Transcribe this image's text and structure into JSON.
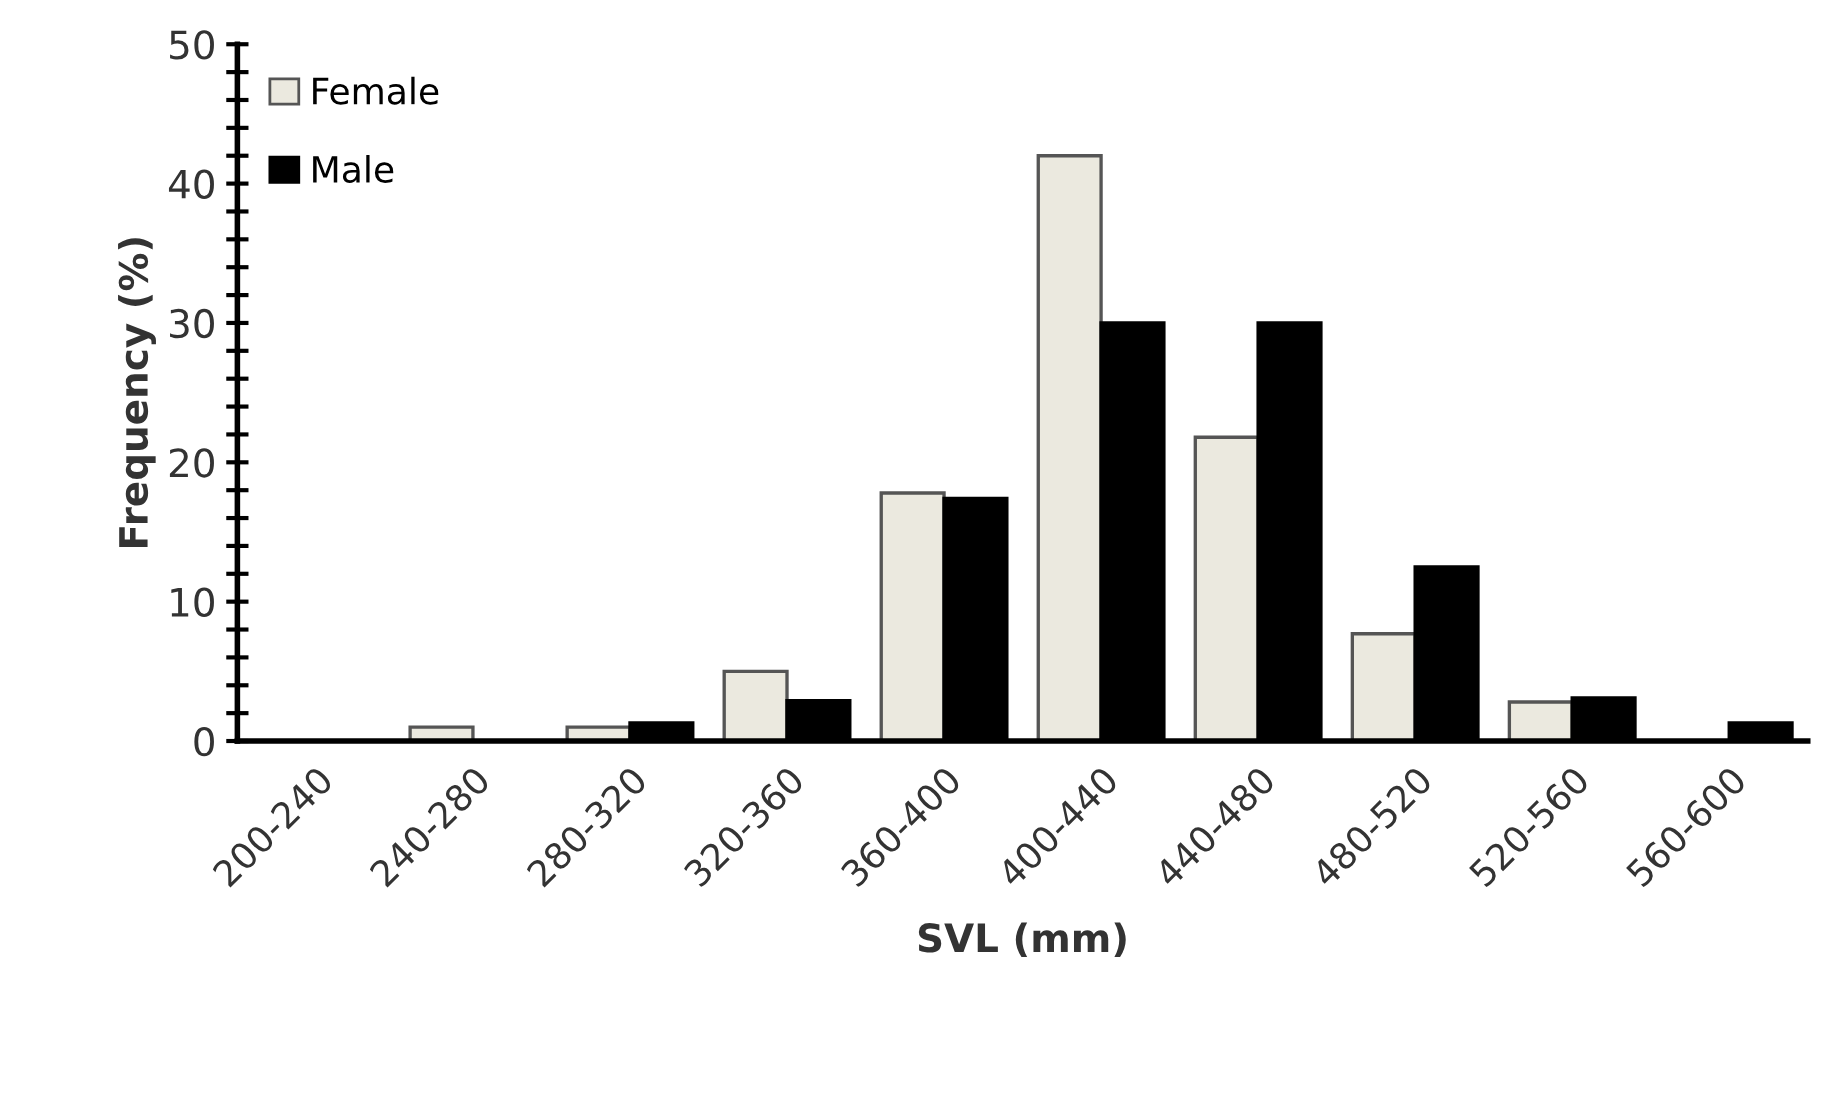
{
  "chart_data": {
    "type": "bar",
    "xlabel": "SVL (mm)",
    "ylabel": "Frequency (%)",
    "categories": [
      "200-240",
      "240-280",
      "280-320",
      "320-360",
      "360-400",
      "400-440",
      "440-480",
      "480-520",
      "520-560",
      "560-600"
    ],
    "series": [
      {
        "name": "Female",
        "color": "#ebe9df",
        "values": [
          0,
          1,
          1,
          5,
          17.8,
          42,
          21.8,
          7.7,
          2.8,
          0
        ]
      },
      {
        "name": "Male",
        "color": "#000000",
        "values": [
          0,
          0,
          1.3,
          2.9,
          17.4,
          30,
          30,
          12.5,
          3.1,
          1.3
        ]
      }
    ],
    "ylim": [
      0,
      50
    ],
    "yticks": [
      0,
      {
        "value": 2,
        "label": null
      },
      {
        "value": 4,
        "label": null
      },
      {
        "value": 6,
        "label": null
      },
      {
        "value": 8,
        "label": null
      },
      10,
      {
        "value": 12,
        "label": null
      },
      {
        "value": 14,
        "label": null
      },
      {
        "value": 16,
        "label": null
      },
      {
        "value": 18,
        "label": null
      },
      20,
      {
        "value": 22,
        "label": null
      },
      {
        "value": 24,
        "label": null
      },
      {
        "value": 26,
        "label": null
      },
      {
        "value": 28,
        "label": null
      },
      30,
      {
        "value": 32,
        "label": null
      },
      {
        "value": 34,
        "label": null
      },
      {
        "value": 36,
        "label": null
      },
      {
        "value": 38,
        "label": null
      },
      40,
      {
        "value": 42,
        "label": null
      },
      {
        "value": 44,
        "label": null
      },
      {
        "value": 46,
        "label": null
      },
      {
        "value": 48,
        "label": null
      },
      50
    ],
    "grid": false,
    "legend": "top left"
  }
}
